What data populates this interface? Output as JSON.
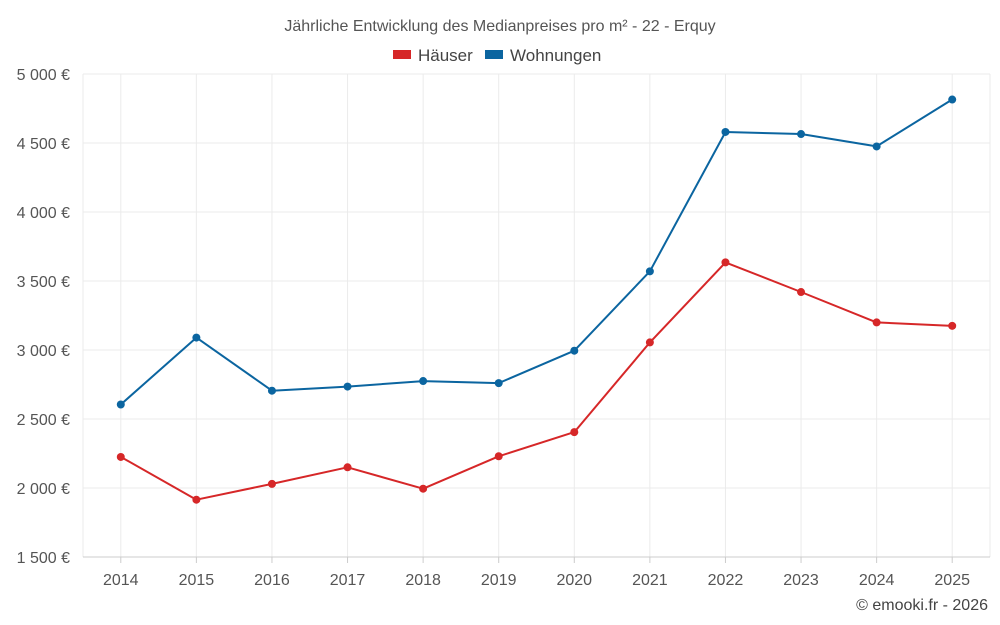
{
  "chart_data": {
    "type": "line",
    "title": "Jährliche Entwicklung des Medianpreises pro m² - 22 - Erquy",
    "categories": [
      "2014",
      "2015",
      "2016",
      "2017",
      "2018",
      "2019",
      "2020",
      "2021",
      "2022",
      "2023",
      "2024",
      "2025"
    ],
    "series": [
      {
        "name": "Häuser",
        "color": "#d62728",
        "values": [
          2225,
          1915,
          2030,
          2150,
          1995,
          2230,
          2405,
          3055,
          3635,
          3420,
          3200,
          3175
        ]
      },
      {
        "name": "Wohnungen",
        "color": "#0b65a0",
        "values": [
          2605,
          3090,
          2705,
          2735,
          2775,
          2760,
          2995,
          3570,
          4580,
          4565,
          4475,
          4815
        ]
      }
    ],
    "ylim": [
      1500,
      5000
    ],
    "yticks": [
      1500,
      2000,
      2500,
      3000,
      3500,
      4000,
      4500,
      5000
    ],
    "ytick_labels": [
      "1 500 €",
      "2 000 €",
      "2 500 €",
      "3 000 €",
      "3 500 €",
      "4 000 €",
      "4 500 €",
      "5 000 €"
    ],
    "xlabel": "",
    "ylabel": "",
    "grid": true,
    "legend_position": "top-center"
  },
  "credit": "© emooki.fr - 2026"
}
